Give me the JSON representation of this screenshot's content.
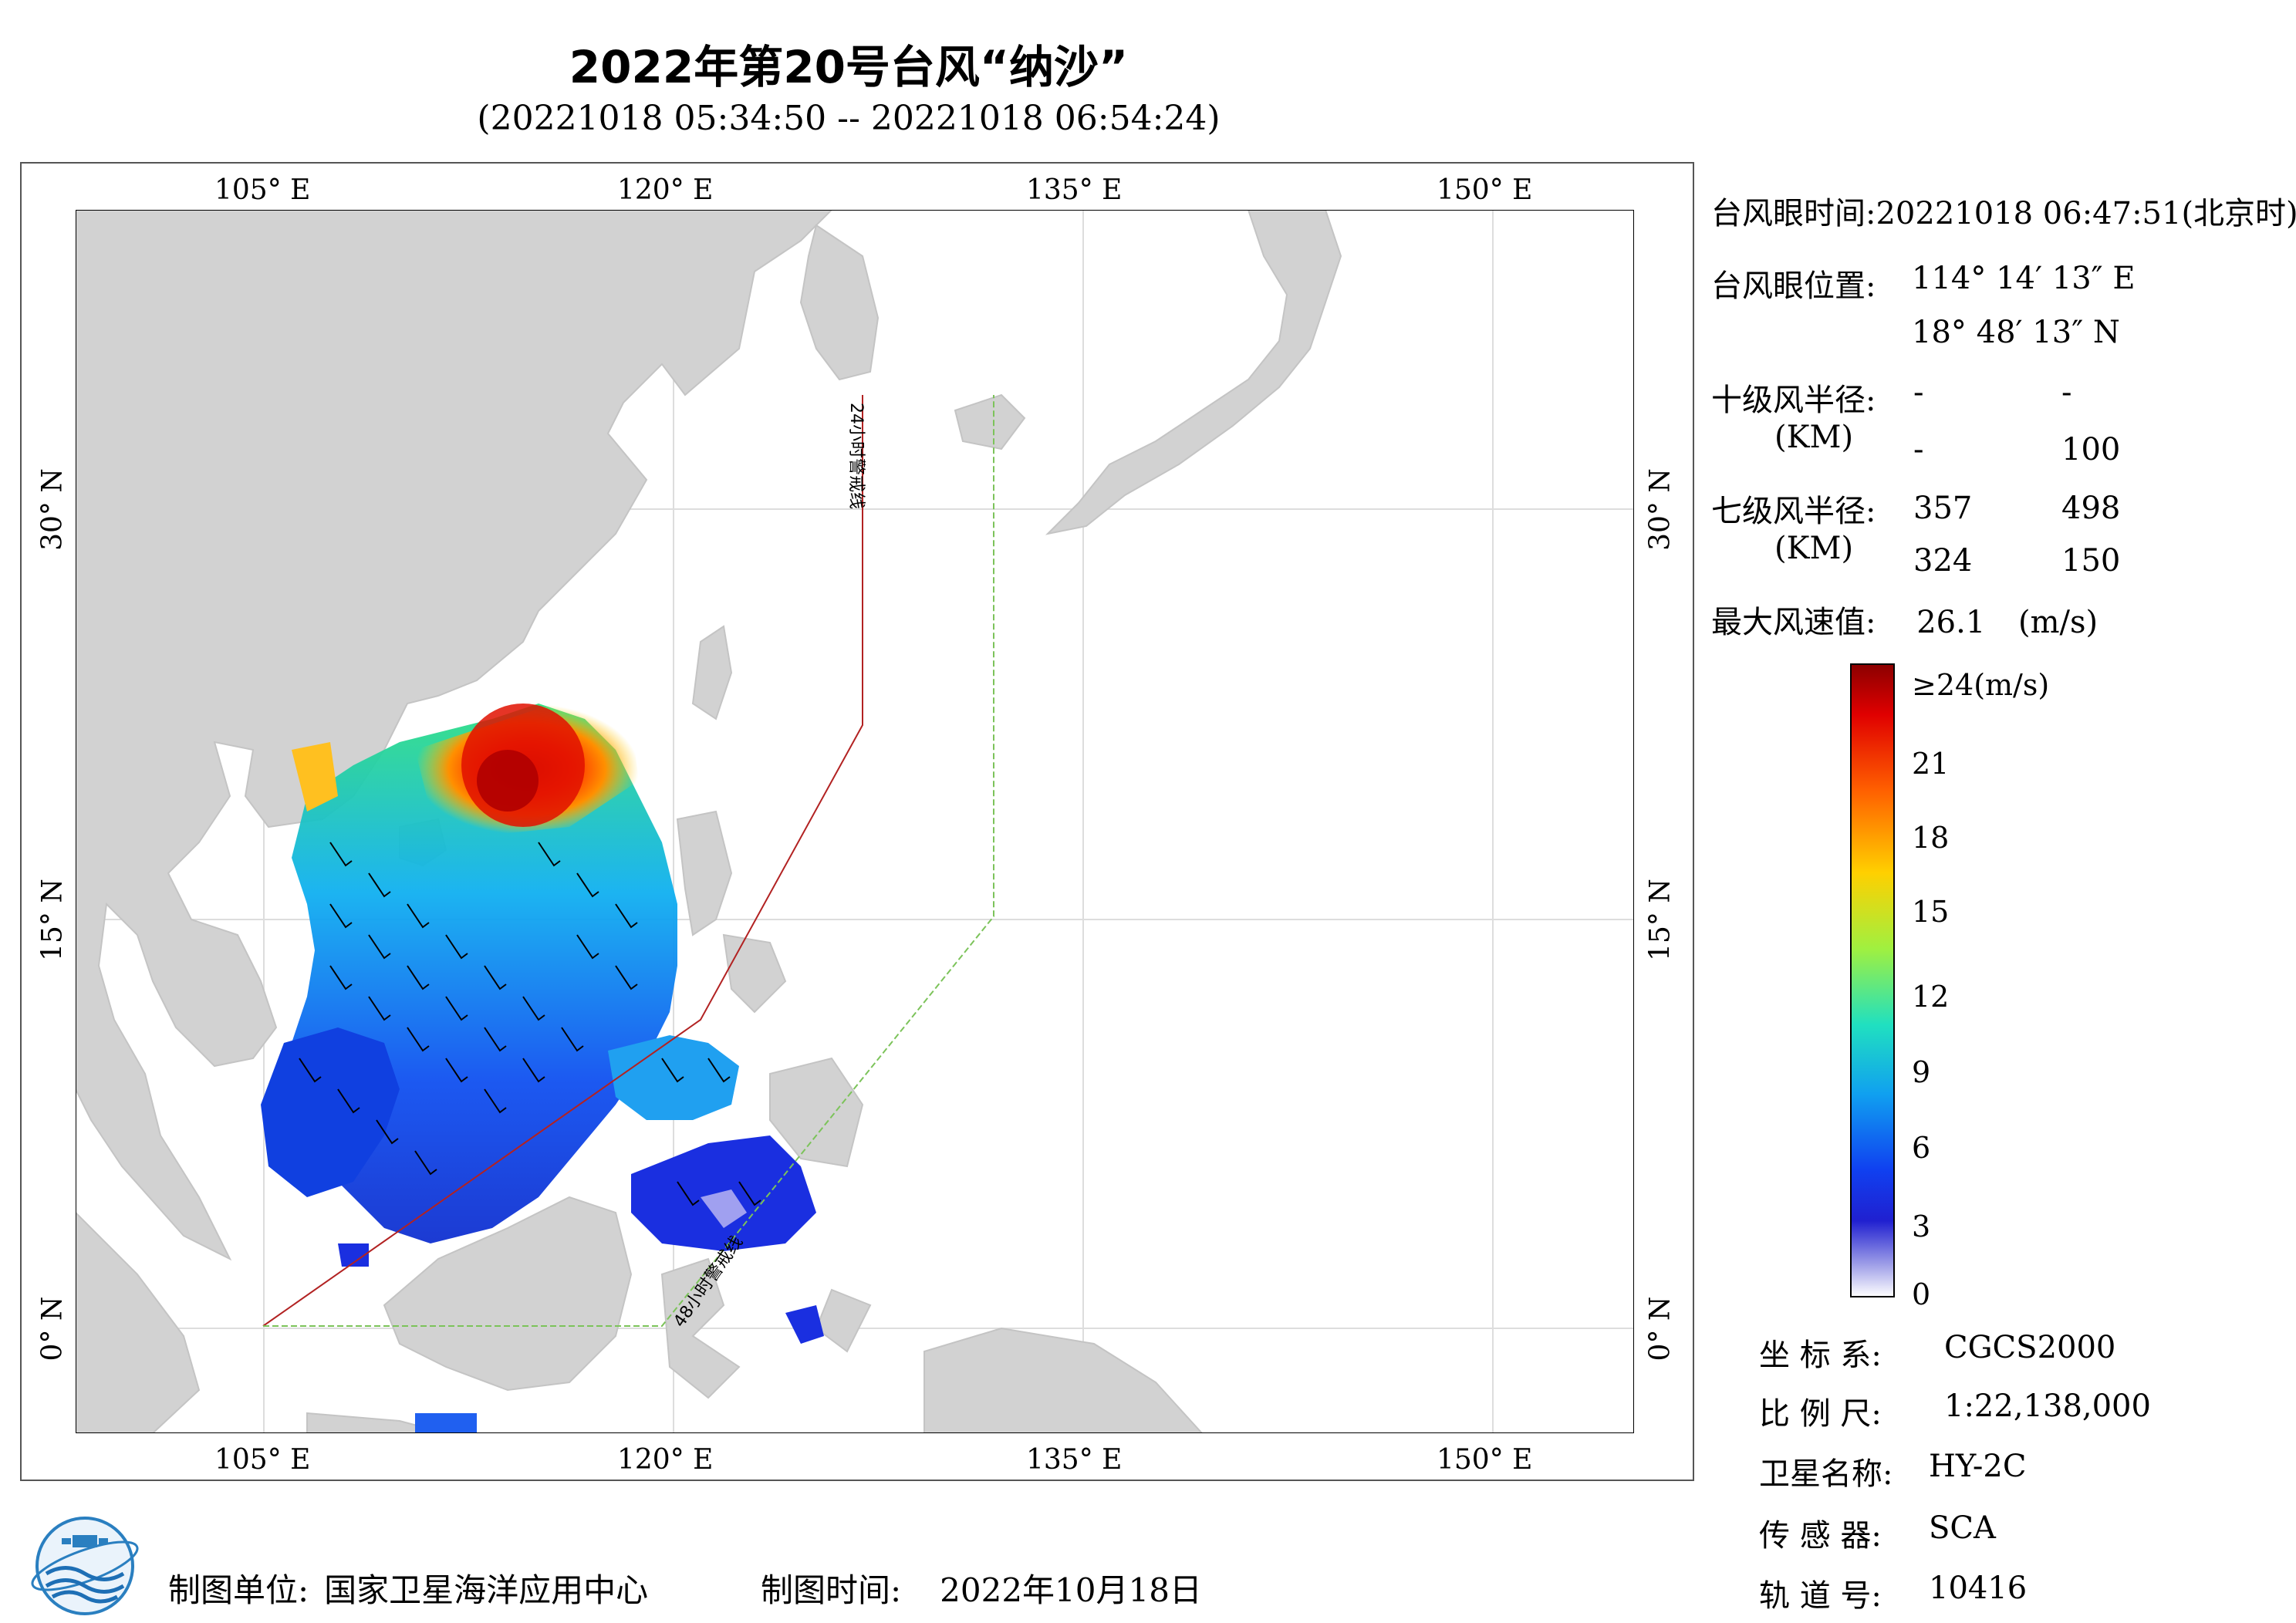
{
  "header": {
    "title": "2022年第20号台风“纳沙”",
    "subtitle": "(20221018 05:34:50 -- 20221018 06:54:24)"
  },
  "map": {
    "lon_labels": [
      "105° E",
      "120° E",
      "135° E",
      "150° E"
    ],
    "lat_labels": [
      "30° N",
      "15° N",
      "0° N"
    ],
    "warning_24h": "24小时警戒线",
    "warning_48h": "48小时警戒线",
    "colors": {
      "land": "#d2d2d2",
      "sea": "#ffffff",
      "line_24h": "#b22222",
      "line_48h": "#7cc35a",
      "grid": "#dddddd"
    }
  },
  "info": {
    "eye_time_label": "台风眼时间:",
    "eye_time_value": "20221018 06:47:51(北京时)",
    "eye_pos_label": "台风眼位置:",
    "eye_lon": "114° 14′ 13″ E",
    "eye_lat": "18° 48′ 13″ N",
    "r10_label": "十级风半径:",
    "r10_unit": "(KM)",
    "r10_values": [
      "-",
      "-",
      "-",
      "100"
    ],
    "r7_label": "七级风半径:",
    "r7_unit": "(KM)",
    "r7_values": [
      "357",
      "498",
      "324",
      "150"
    ],
    "max_wind_label": "最大风速值:",
    "max_wind_value": "26.1",
    "max_wind_unit": "(m/s)"
  },
  "colorbar": {
    "top_label": "≥24(m/s)",
    "ticks": [
      "21",
      "18",
      "15",
      "12",
      "9",
      "6",
      "3",
      "0"
    ]
  },
  "meta": {
    "crs_label": "坐 标 系:",
    "crs_value": "CGCS2000",
    "scale_label": "比 例 尺:",
    "scale_value": "1:22,138,000",
    "satellite_label": "卫星名称:",
    "satellite_value": "HY-2C",
    "sensor_label": "传 感 器:",
    "sensor_value": "SCA",
    "orbit_label": "轨 道 号:",
    "orbit_value": "10416"
  },
  "footer": {
    "unit_label": "制图单位:",
    "unit_value": "国家卫星海洋应用中心",
    "date_label": "制图时间:",
    "date_value": "2022年10月18日"
  }
}
